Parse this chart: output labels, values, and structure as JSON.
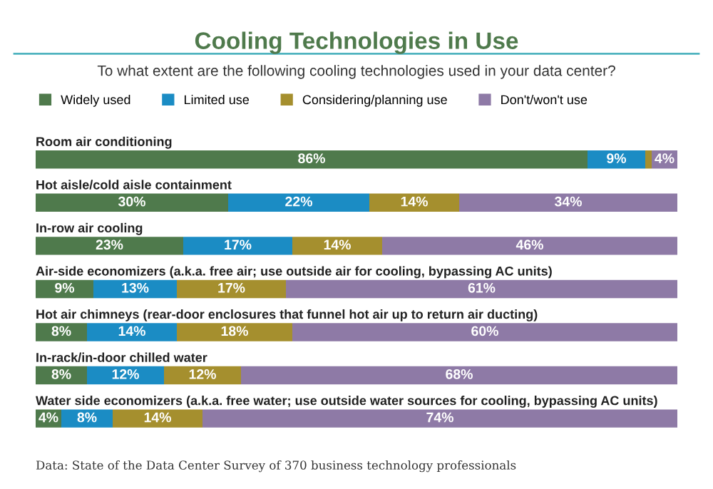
{
  "chart_data": {
    "type": "bar",
    "orientation": "horizontal",
    "stacked": true,
    "title": "Cooling Technologies in Use",
    "subtitle": "To what extent are the following cooling technologies used in your data center?",
    "categories": [
      "Room air conditioning",
      "Hot aisle/cold aisle containment",
      "In-row air cooling",
      "Air-side economizers (a.k.a. free air; use outside air for cooling, bypassing AC units)",
      "Hot air chimneys (rear-door enclosures that funnel hot air up to return air ducting)",
      "In-rack/in-door chilled water",
      "Water side economizers (a.k.a. free water; use outside water sources for cooling, bypassing AC units)"
    ],
    "series": [
      {
        "name": "Widely used",
        "color": "#4f7a4c",
        "values": [
          86,
          30,
          23,
          9,
          8,
          8,
          4
        ],
        "value_labels": [
          "86%",
          "30%",
          "23%",
          "9%",
          "8%",
          "8%",
          "4%"
        ]
      },
      {
        "name": "Limited use",
        "color": "#1b8cc4",
        "values": [
          9,
          22,
          17,
          13,
          14,
          12,
          8
        ],
        "value_labels": [
          "9%",
          "22%",
          "17%",
          "13%",
          "14%",
          "12%",
          "8%"
        ]
      },
      {
        "name": "Considering/planning use",
        "color": "#a58f2e",
        "values": [
          1,
          14,
          14,
          17,
          18,
          12,
          14
        ],
        "value_labels": [
          null,
          "14%",
          "14%",
          "17%",
          "18%",
          "12%",
          "14%"
        ]
      },
      {
        "name": "Don't/won't use",
        "color": "#8e7aa6",
        "values": [
          4,
          34,
          46,
          61,
          60,
          68,
          74
        ],
        "value_labels": [
          "4%",
          "34%",
          "46%",
          "61%",
          "60%",
          "68%",
          "74%"
        ]
      }
    ],
    "legend": "top left",
    "annotations": [
      "Data: State of the Data Center Survey of 370 business technology professionals"
    ]
  }
}
